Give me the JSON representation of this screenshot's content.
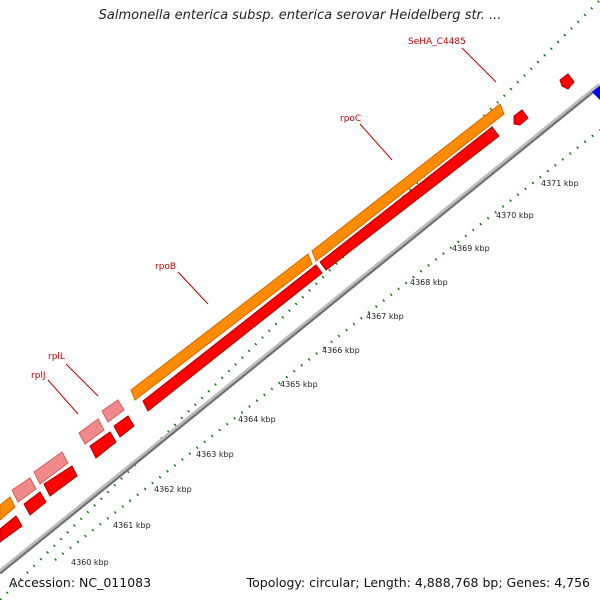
{
  "title": "Salmonella enterica subsp. enterica serovar Heidelberg str. ...",
  "footer": {
    "accession": "Accession: NC_011083",
    "summary": "Topology: circular; Length: 4,888,768 bp; Genes: 4,756"
  },
  "colors": {
    "backbone": "#8a8a8a",
    "cds_forward": "#ff0000",
    "cds_forward_light": "#f08a8a",
    "gene_orange": "#ff8c00",
    "gene_label": "#c00000",
    "tick": "#007700",
    "other_feature": "#0000ff"
  },
  "tick_labels": [
    "4360 kbp",
    "4361 kbp",
    "4362 kbp",
    "4363 kbp",
    "4364 kbp",
    "4365 kbp",
    "4366 kbp",
    "4367 kbp",
    "4368 kbp",
    "4369 kbp",
    "4370 kbp",
    "4371 kbp"
  ],
  "gene_labels": [
    "SeHA_C4485",
    "rpoC",
    "rpoB",
    "rplL",
    "rplJ"
  ]
}
